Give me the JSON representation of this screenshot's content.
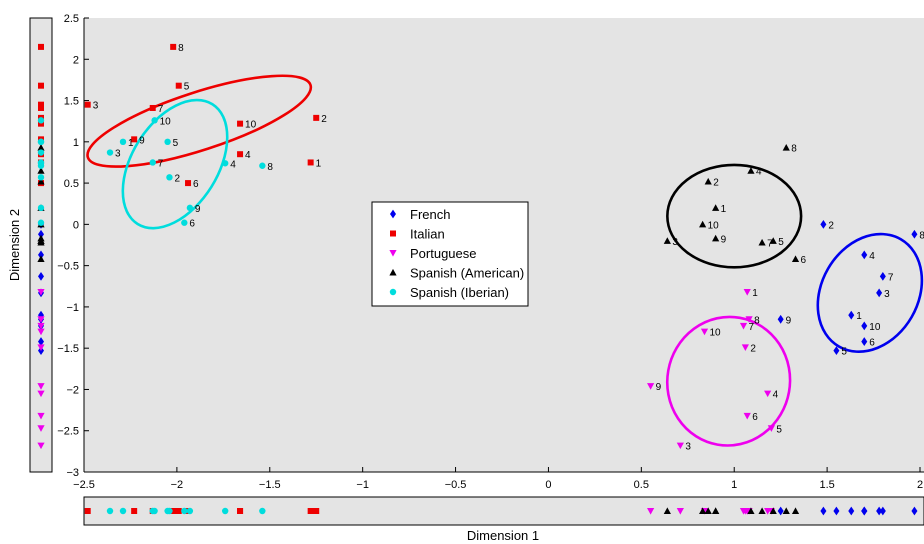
{
  "chart_data": {
    "type": "scatter",
    "xlabel": "Dimension 1",
    "ylabel": "Dimension 2",
    "xlim": [
      -2.5,
      2.0
    ],
    "ylim": [
      -3.0,
      2.5
    ],
    "xticks": [
      -2.5,
      -2,
      -1.5,
      -1,
      -0.5,
      0,
      0.5,
      1,
      1.5,
      2
    ],
    "xtick_labels": [
      "−2.5",
      "−2",
      "−1.5",
      "−1",
      "−0.5",
      "0",
      "0.5",
      "1",
      "1.5",
      "2"
    ],
    "yticks": [
      -3,
      -2.5,
      -2,
      -1.5,
      -1,
      -0.5,
      0,
      0.5,
      1,
      1.5,
      2,
      2.5
    ],
    "ytick_labels": [
      "−3",
      "−2.5",
      "−2",
      "−1.5",
      "−1",
      "−0.5",
      "0",
      "0.5",
      "1",
      "1.5",
      "2",
      "2.5"
    ],
    "grid": false,
    "legend_position": "center",
    "series": [
      {
        "name": "French",
        "color": "#0000ee",
        "marker": "diamond",
        "points": [
          {
            "label": "1",
            "x": 1.63,
            "y": -1.1
          },
          {
            "label": "2",
            "x": 1.48,
            "y": 0.0
          },
          {
            "label": "3",
            "x": 1.78,
            "y": -0.83
          },
          {
            "label": "4",
            "x": 1.7,
            "y": -0.37
          },
          {
            "label": "5",
            "x": 1.55,
            "y": -1.53
          },
          {
            "label": "6",
            "x": 1.7,
            "y": -1.42
          },
          {
            "label": "7",
            "x": 1.8,
            "y": -0.63
          },
          {
            "label": "8",
            "x": 1.97,
            "y": -0.12
          },
          {
            "label": "9",
            "x": 1.25,
            "y": -1.15
          },
          {
            "label": "10",
            "x": 1.7,
            "y": -1.23
          }
        ],
        "ellipse": {
          "cx": 1.73,
          "cy": -0.83,
          "rx": 0.26,
          "ry": 0.75,
          "rotation": 30
        }
      },
      {
        "name": "Italian",
        "color": "#ee0000",
        "marker": "square",
        "points": [
          {
            "label": "1",
            "x": -1.28,
            "y": 0.75
          },
          {
            "label": "2",
            "x": -1.25,
            "y": 1.29
          },
          {
            "label": "3",
            "x": -2.48,
            "y": 1.45
          },
          {
            "label": "4",
            "x": -1.66,
            "y": 0.85
          },
          {
            "label": "5",
            "x": -1.99,
            "y": 1.68
          },
          {
            "label": "6",
            "x": -1.94,
            "y": 0.5
          },
          {
            "label": "7",
            "x": -2.13,
            "y": 1.41
          },
          {
            "label": "8",
            "x": -2.02,
            "y": 2.15
          },
          {
            "label": "9",
            "x": -2.23,
            "y": 1.03
          },
          {
            "label": "10",
            "x": -1.66,
            "y": 1.22
          }
        ],
        "ellipse": {
          "cx": -1.88,
          "cy": 1.25,
          "rx": 0.63,
          "ry": 0.35,
          "rotation": -18
        }
      },
      {
        "name": "Portuguese",
        "color": "#ee00ee",
        "marker": "triangle-down",
        "points": [
          {
            "label": "1",
            "x": 1.07,
            "y": -0.82
          },
          {
            "label": "2",
            "x": 1.06,
            "y": -1.49
          },
          {
            "label": "3",
            "x": 0.71,
            "y": -2.68
          },
          {
            "label": "4",
            "x": 1.18,
            "y": -2.05
          },
          {
            "label": "5",
            "x": 1.2,
            "y": -2.47
          },
          {
            "label": "6",
            "x": 1.07,
            "y": -2.32
          },
          {
            "label": "7",
            "x": 1.05,
            "y": -1.23
          },
          {
            "label": "8",
            "x": 1.08,
            "y": -1.15
          },
          {
            "label": "9",
            "x": 0.55,
            "y": -1.96
          },
          {
            "label": "10",
            "x": 0.84,
            "y": -1.3
          }
        ],
        "ellipse": {
          "cx": 0.97,
          "cy": -1.9,
          "rx": 0.33,
          "ry": 0.78,
          "rotation": 10
        }
      },
      {
        "name": "Spanish (American)",
        "color": "#000000",
        "marker": "triangle-up",
        "points": [
          {
            "label": "1",
            "x": 0.9,
            "y": 0.2
          },
          {
            "label": "2",
            "x": 0.86,
            "y": 0.52
          },
          {
            "label": "3",
            "x": 0.64,
            "y": -0.2
          },
          {
            "label": "4",
            "x": 1.09,
            "y": 0.65
          },
          {
            "label": "5",
            "x": 1.21,
            "y": -0.2
          },
          {
            "label": "6",
            "x": 1.33,
            "y": -0.42
          },
          {
            "label": "7",
            "x": 1.15,
            "y": -0.22
          },
          {
            "label": "8",
            "x": 1.28,
            "y": 0.93
          },
          {
            "label": "9",
            "x": 0.9,
            "y": -0.17
          },
          {
            "label": "10",
            "x": 0.83,
            "y": 0.0
          }
        ],
        "ellipse": {
          "cx": 1.0,
          "cy": 0.1,
          "rx": 0.36,
          "ry": 0.62,
          "rotation": 0
        }
      },
      {
        "name": "Spanish (Iberian)",
        "color": "#00dddd",
        "marker": "circle",
        "points": [
          {
            "label": "1",
            "x": -2.29,
            "y": 1.0
          },
          {
            "label": "2",
            "x": -2.04,
            "y": 0.57
          },
          {
            "label": "3",
            "x": -2.36,
            "y": 0.87
          },
          {
            "label": "4",
            "x": -1.74,
            "y": 0.74
          },
          {
            "label": "5",
            "x": -2.05,
            "y": 1.0
          },
          {
            "label": "6",
            "x": -1.96,
            "y": 0.02
          },
          {
            "label": "7",
            "x": -2.13,
            "y": 0.75
          },
          {
            "label": "8",
            "x": -1.54,
            "y": 0.71
          },
          {
            "label": "9",
            "x": -1.93,
            "y": 0.2
          },
          {
            "label": "10",
            "x": -2.12,
            "y": 1.26
          }
        ],
        "ellipse": {
          "cx": -2.01,
          "cy": 0.73,
          "rx": 0.38,
          "ry": 0.52,
          "rotation": -58
        }
      }
    ]
  }
}
